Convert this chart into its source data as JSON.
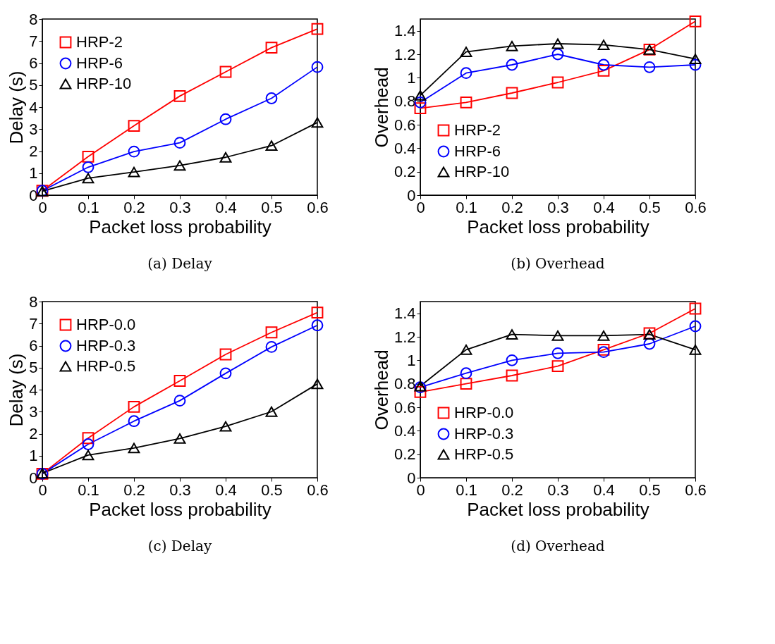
{
  "chart_data": [
    {
      "type": "line",
      "title": "(a) Delay",
      "xlabel": "Packet loss probability",
      "ylabel": "Delay (s)",
      "x": [
        0,
        0.1,
        0.2,
        0.3,
        0.4,
        0.5,
        0.6
      ],
      "xlim": [
        0,
        0.6
      ],
      "xticks": [
        0,
        0.1,
        0.2,
        0.3,
        0.4,
        0.5,
        0.6
      ],
      "ylim": [
        0,
        8
      ],
      "yticks": [
        0,
        1,
        2,
        3,
        4,
        5,
        6,
        7,
        8
      ],
      "legend": "top left",
      "series": [
        {
          "name": "HRP-2",
          "color": "#ff0000",
          "marker": "square",
          "values": [
            0.2,
            1.75,
            3.15,
            4.5,
            5.6,
            6.7,
            7.55
          ]
        },
        {
          "name": "HRP-6",
          "color": "#0000ff",
          "marker": "circle",
          "values": [
            0.2,
            1.27,
            1.98,
            2.38,
            3.45,
            4.4,
            5.82
          ]
        },
        {
          "name": "HRP-10",
          "color": "#000000",
          "marker": "triangle",
          "values": [
            0.18,
            0.77,
            1.05,
            1.35,
            1.72,
            2.25,
            3.3
          ]
        }
      ]
    },
    {
      "type": "line",
      "title": "(b) Overhead",
      "xlabel": "Packet loss probability",
      "ylabel": "Overhead",
      "x": [
        0,
        0.1,
        0.2,
        0.3,
        0.4,
        0.5,
        0.6
      ],
      "xlim": [
        0,
        0.6
      ],
      "xticks": [
        0,
        0.1,
        0.2,
        0.3,
        0.4,
        0.5,
        0.6
      ],
      "ylim": [
        0,
        1.5
      ],
      "yticks": [
        0,
        0.2,
        0.4,
        0.6,
        0.8,
        1,
        1.2,
        1.4
      ],
      "legend": "bottom left",
      "series": [
        {
          "name": "HRP-2",
          "color": "#ff0000",
          "marker": "square",
          "values": [
            0.74,
            0.79,
            0.87,
            0.96,
            1.06,
            1.24,
            1.48
          ]
        },
        {
          "name": "HRP-6",
          "color": "#0000ff",
          "marker": "circle",
          "values": [
            0.79,
            1.04,
            1.11,
            1.2,
            1.11,
            1.09,
            1.11
          ]
        },
        {
          "name": "HRP-10",
          "color": "#000000",
          "marker": "triangle",
          "values": [
            0.85,
            1.22,
            1.27,
            1.29,
            1.28,
            1.24,
            1.16
          ]
        }
      ]
    },
    {
      "type": "line",
      "title": "(c) Delay",
      "xlabel": "Packet loss probability",
      "ylabel": "Delay (s)",
      "x": [
        0,
        0.1,
        0.2,
        0.3,
        0.4,
        0.5,
        0.6
      ],
      "xlim": [
        0,
        0.6
      ],
      "xticks": [
        0,
        0.1,
        0.2,
        0.3,
        0.4,
        0.5,
        0.6
      ],
      "ylim": [
        0,
        8
      ],
      "yticks": [
        0,
        1,
        2,
        3,
        4,
        5,
        6,
        7,
        8
      ],
      "legend": "top left",
      "series": [
        {
          "name": "HRP-0.0",
          "color": "#ff0000",
          "marker": "square",
          "values": [
            0.18,
            1.8,
            3.22,
            4.4,
            5.6,
            6.6,
            7.5
          ]
        },
        {
          "name": "HRP-0.3",
          "color": "#0000ff",
          "marker": "circle",
          "values": [
            0.18,
            1.52,
            2.57,
            3.5,
            4.74,
            5.94,
            6.92
          ]
        },
        {
          "name": "HRP-0.5",
          "color": "#000000",
          "marker": "triangle",
          "values": [
            0.2,
            1.03,
            1.35,
            1.78,
            2.33,
            3.0,
            4.26
          ]
        }
      ]
    },
    {
      "type": "line",
      "title": "(d) Overhead",
      "xlabel": "Packet loss probability",
      "ylabel": "Overhead",
      "x": [
        0,
        0.1,
        0.2,
        0.3,
        0.4,
        0.5,
        0.6
      ],
      "xlim": [
        0,
        0.6
      ],
      "xticks": [
        0,
        0.1,
        0.2,
        0.3,
        0.4,
        0.5,
        0.6
      ],
      "ylim": [
        0,
        1.5
      ],
      "yticks": [
        0,
        0.2,
        0.4,
        0.6,
        0.8,
        1,
        1.2,
        1.4
      ],
      "legend": "bottom left",
      "series": [
        {
          "name": "HRP-0.0",
          "color": "#ff0000",
          "marker": "square",
          "values": [
            0.73,
            0.8,
            0.87,
            0.95,
            1.09,
            1.23,
            1.44
          ]
        },
        {
          "name": "HRP-0.3",
          "color": "#0000ff",
          "marker": "circle",
          "values": [
            0.77,
            0.89,
            1.0,
            1.06,
            1.07,
            1.14,
            1.29
          ]
        },
        {
          "name": "HRP-0.5",
          "color": "#000000",
          "marker": "triangle",
          "values": [
            0.78,
            1.09,
            1.22,
            1.21,
            1.21,
            1.22,
            1.09
          ]
        }
      ]
    }
  ]
}
